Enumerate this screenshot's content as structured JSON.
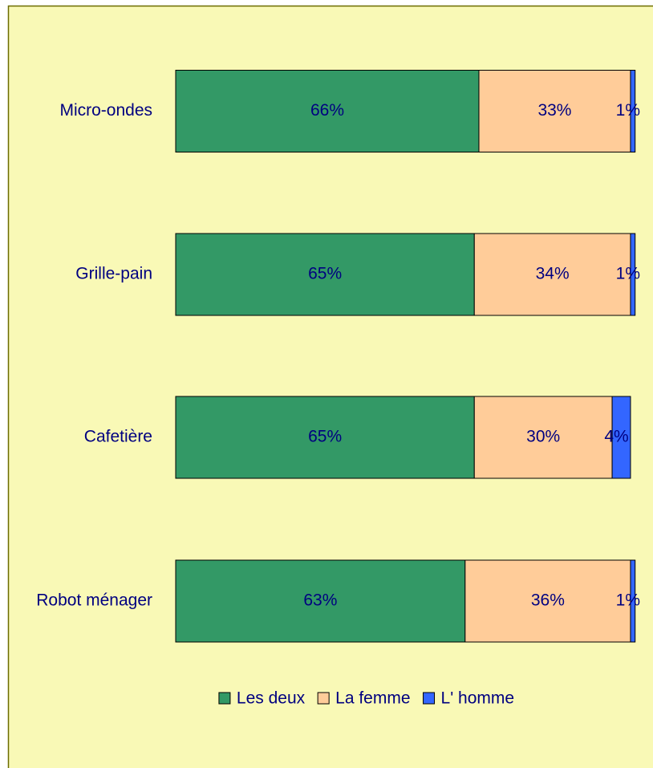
{
  "chart_data": {
    "type": "stacked-barh",
    "categories": [
      "Micro-ondes",
      "Grille-pain",
      "Cafetière",
      "Robot ménager"
    ],
    "series": [
      {
        "name": "Les deux",
        "color": "#339966",
        "values": [
          66,
          65,
          65,
          63
        ],
        "value_labels": [
          "66%",
          "65%",
          "65%",
          "63%"
        ]
      },
      {
        "name": "La femme",
        "color": "#ffcc99",
        "values": [
          33,
          34,
          30,
          36
        ],
        "value_labels": [
          "33%",
          "34%",
          "30%",
          "36%"
        ]
      },
      {
        "name": "L' homme",
        "color": "#3366ff",
        "values": [
          1,
          1,
          4,
          1
        ],
        "value_labels": [
          "1%",
          "1%",
          "4%",
          "1%"
        ]
      }
    ],
    "legend": "bottom"
  }
}
